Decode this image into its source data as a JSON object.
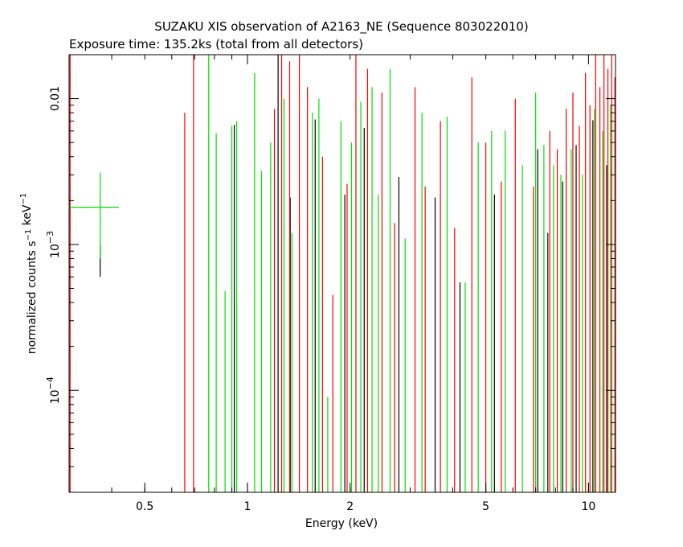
{
  "chart_data": {
    "type": "scatter",
    "title": "SUZAKU XIS observation of A2163_NE (Sequence 803022010)",
    "subtitle": "Exposure time: 135.2ks (total from all detectors)",
    "xlabel": "Energy (keV)",
    "ylabel": "normalized counts s⁻¹ keV⁻¹",
    "xscale": "log",
    "yscale": "log",
    "xlim": [
      0.3,
      12.0
    ],
    "ylim": [
      2e-05,
      0.02
    ],
    "x_ticks": [
      {
        "value": 0.5,
        "label": "0.5"
      },
      {
        "value": 1,
        "label": "1"
      },
      {
        "value": 2,
        "label": "2"
      },
      {
        "value": 5,
        "label": "5"
      },
      {
        "value": 10,
        "label": "10"
      }
    ],
    "y_ticks": [
      {
        "value": 0.01,
        "label": "0.01",
        "type": "plain"
      },
      {
        "value": 0.001,
        "label": "10",
        "exp": "−3",
        "type": "pow"
      },
      {
        "value": 0.0001,
        "label": "10",
        "exp": "−4",
        "type": "pow"
      }
    ],
    "grid": false,
    "series": [
      {
        "color": "#000000",
        "points": [
          {
            "x": 0.37,
            "y": 0.001,
            "ylo": 0.0006,
            "yhi": 0.001
          },
          {
            "x": 0.915,
            "y": 0.0066,
            "ylo": 2e-05,
            "yhi": 0.0066
          },
          {
            "x": 1.23,
            "y": 0.02,
            "ylo": 2e-05,
            "yhi": 0.02
          },
          {
            "x": 1.335,
            "y": 0.0021,
            "ylo": 2e-05,
            "yhi": 0.0021
          },
          {
            "x": 1.58,
            "y": 0.0072,
            "ylo": 2e-05,
            "yhi": 0.0072
          },
          {
            "x": 1.93,
            "y": 0.0022,
            "ylo": 2e-05,
            "yhi": 0.0022
          },
          {
            "x": 2.2,
            "y": 0.0063,
            "ylo": 2e-05,
            "yhi": 0.0063
          },
          {
            "x": 2.78,
            "y": 0.0029,
            "ylo": 2e-05,
            "yhi": 0.0029
          },
          {
            "x": 3.55,
            "y": 0.0021,
            "ylo": 2e-05,
            "yhi": 0.0021
          },
          {
            "x": 4.2,
            "y": 0.00055,
            "ylo": 2e-05,
            "yhi": 0.00055
          },
          {
            "x": 5.3,
            "y": 0.0022,
            "ylo": 2e-05,
            "yhi": 0.0022
          },
          {
            "x": 7.1,
            "y": 0.0045,
            "ylo": 2e-05,
            "yhi": 0.0045
          },
          {
            "x": 7.6,
            "y": 0.0012,
            "ylo": 2e-05,
            "yhi": 0.0012
          },
          {
            "x": 8.4,
            "y": 0.0027,
            "ylo": 2e-05,
            "yhi": 0.0027
          },
          {
            "x": 9.2,
            "y": 0.0048,
            "ylo": 2e-05,
            "yhi": 0.0048
          },
          {
            "x": 10.3,
            "y": 0.0071,
            "ylo": 2e-05,
            "yhi": 0.0071
          },
          {
            "x": 11.3,
            "y": 0.0035,
            "ylo": 2e-05,
            "yhi": 0.0035
          }
        ]
      },
      {
        "color": "#ff0000",
        "points": [
          {
            "x": 0.302,
            "y": 0.02,
            "ylo": 2e-05,
            "yhi": 0.02
          },
          {
            "x": 0.655,
            "y": 0.008,
            "ylo": 2e-05,
            "yhi": 0.008
          },
          {
            "x": 0.695,
            "y": 0.02,
            "ylo": 2e-05,
            "yhi": 0.02
          },
          {
            "x": 1.2,
            "y": 0.0085,
            "ylo": 2e-05,
            "yhi": 0.0085
          },
          {
            "x": 1.26,
            "y": 0.02,
            "ylo": 2e-05,
            "yhi": 0.02
          },
          {
            "x": 1.33,
            "y": 0.018,
            "ylo": 2e-05,
            "yhi": 0.018
          },
          {
            "x": 1.42,
            "y": 0.02,
            "ylo": 2e-05,
            "yhi": 0.02
          },
          {
            "x": 1.5,
            "y": 0.012,
            "ylo": 2e-05,
            "yhi": 0.012
          },
          {
            "x": 1.66,
            "y": 0.004,
            "ylo": 2e-05,
            "yhi": 0.004
          },
          {
            "x": 1.78,
            "y": 0.00045,
            "ylo": 2e-05,
            "yhi": 0.00045
          },
          {
            "x": 1.96,
            "y": 0.0026,
            "ylo": 2e-05,
            "yhi": 0.0026
          },
          {
            "x": 2.08,
            "y": 0.02,
            "ylo": 2e-05,
            "yhi": 0.02
          },
          {
            "x": 2.25,
            "y": 0.016,
            "ylo": 2e-05,
            "yhi": 0.016
          },
          {
            "x": 2.48,
            "y": 0.011,
            "ylo": 2e-05,
            "yhi": 0.011
          },
          {
            "x": 2.7,
            "y": 0.0014,
            "ylo": 2e-05,
            "yhi": 0.0014
          },
          {
            "x": 3.1,
            "y": 0.012,
            "ylo": 2e-05,
            "yhi": 0.012
          },
          {
            "x": 3.32,
            "y": 0.0025,
            "ylo": 2e-05,
            "yhi": 0.0025
          },
          {
            "x": 3.68,
            "y": 0.007,
            "ylo": 2e-05,
            "yhi": 0.007
          },
          {
            "x": 4.05,
            "y": 0.0013,
            "ylo": 2e-05,
            "yhi": 0.0013
          },
          {
            "x": 4.55,
            "y": 0.014,
            "ylo": 2e-05,
            "yhi": 0.014
          },
          {
            "x": 5.0,
            "y": 0.005,
            "ylo": 2e-05,
            "yhi": 0.005
          },
          {
            "x": 5.55,
            "y": 0.0027,
            "ylo": 2e-05,
            "yhi": 0.0027
          },
          {
            "x": 6.1,
            "y": 0.01,
            "ylo": 2e-05,
            "yhi": 0.01
          },
          {
            "x": 6.9,
            "y": 0.0025,
            "ylo": 2e-05,
            "yhi": 0.0025
          },
          {
            "x": 7.7,
            "y": 0.006,
            "ylo": 2e-05,
            "yhi": 0.006
          },
          {
            "x": 8.1,
            "y": 0.0045,
            "ylo": 2e-05,
            "yhi": 0.0045
          },
          {
            "x": 8.6,
            "y": 0.0085,
            "ylo": 2e-05,
            "yhi": 0.0085
          },
          {
            "x": 9.0,
            "y": 0.011,
            "ylo": 2e-05,
            "yhi": 0.011
          },
          {
            "x": 9.4,
            "y": 0.0065,
            "ylo": 2e-05,
            "yhi": 0.0065
          },
          {
            "x": 9.8,
            "y": 0.015,
            "ylo": 2e-05,
            "yhi": 0.015
          },
          {
            "x": 10.1,
            "y": 0.009,
            "ylo": 2e-05,
            "yhi": 0.009
          },
          {
            "x": 10.5,
            "y": 0.02,
            "ylo": 2e-05,
            "yhi": 0.02
          },
          {
            "x": 10.8,
            "y": 0.012,
            "ylo": 2e-05,
            "yhi": 0.012
          },
          {
            "x": 11.1,
            "y": 0.02,
            "ylo": 2e-05,
            "yhi": 0.02
          },
          {
            "x": 11.4,
            "y": 0.016,
            "ylo": 2e-05,
            "yhi": 0.016
          },
          {
            "x": 11.7,
            "y": 0.02,
            "ylo": 2e-05,
            "yhi": 0.02
          },
          {
            "x": 11.95,
            "y": 0.014,
            "ylo": 2e-05,
            "yhi": 0.014
          }
        ]
      },
      {
        "color": "#00e000",
        "points": [
          {
            "x": 0.37,
            "y": 0.0018,
            "ylo": 0.0008,
            "yhi": 0.0031,
            "xlo": 0.3,
            "xhi": 0.42
          },
          {
            "x": 0.77,
            "y": 0.009,
            "ylo": 2e-05,
            "yhi": 0.02
          },
          {
            "x": 0.81,
            "y": 0.0058,
            "ylo": 2e-05,
            "yhi": 0.0058
          },
          {
            "x": 0.86,
            "y": 0.00048,
            "ylo": 2e-05,
            "yhi": 0.00048
          },
          {
            "x": 0.9,
            "y": 0.0065,
            "ylo": 2e-05,
            "yhi": 0.0065
          },
          {
            "x": 0.93,
            "y": 0.007,
            "ylo": 2e-05,
            "yhi": 0.007
          },
          {
            "x": 1.05,
            "y": 0.015,
            "ylo": 2e-05,
            "yhi": 0.015
          },
          {
            "x": 1.1,
            "y": 0.0032,
            "ylo": 2e-05,
            "yhi": 0.0032
          },
          {
            "x": 1.17,
            "y": 0.005,
            "ylo": 2e-05,
            "yhi": 0.005
          },
          {
            "x": 1.28,
            "y": 0.01,
            "ylo": 2e-05,
            "yhi": 0.01
          },
          {
            "x": 1.35,
            "y": 0.0012,
            "ylo": 2e-05,
            "yhi": 0.0012
          },
          {
            "x": 1.55,
            "y": 0.008,
            "ylo": 2e-05,
            "yhi": 0.008
          },
          {
            "x": 1.62,
            "y": 0.01,
            "ylo": 2e-05,
            "yhi": 0.01
          },
          {
            "x": 1.72,
            "y": 9e-05,
            "ylo": 2e-05,
            "yhi": 9e-05
          },
          {
            "x": 1.88,
            "y": 0.007,
            "ylo": 2e-05,
            "yhi": 0.007
          },
          {
            "x": 2.02,
            "y": 0.005,
            "ylo": 2e-05,
            "yhi": 0.005
          },
          {
            "x": 2.15,
            "y": 0.0095,
            "ylo": 2e-05,
            "yhi": 0.0095
          },
          {
            "x": 2.32,
            "y": 0.012,
            "ylo": 2e-05,
            "yhi": 0.012
          },
          {
            "x": 2.42,
            "y": 0.0022,
            "ylo": 2e-05,
            "yhi": 0.0022
          },
          {
            "x": 2.62,
            "y": 0.016,
            "ylo": 2e-05,
            "yhi": 0.016
          },
          {
            "x": 2.9,
            "y": 0.0011,
            "ylo": 2e-05,
            "yhi": 0.0011
          },
          {
            "x": 3.25,
            "y": 0.008,
            "ylo": 2e-05,
            "yhi": 0.008
          },
          {
            "x": 3.85,
            "y": 0.0075,
            "ylo": 2e-05,
            "yhi": 0.0075
          },
          {
            "x": 4.35,
            "y": 0.00055,
            "ylo": 2e-05,
            "yhi": 0.00055
          },
          {
            "x": 4.75,
            "y": 0.005,
            "ylo": 2e-05,
            "yhi": 0.005
          },
          {
            "x": 5.2,
            "y": 0.006,
            "ylo": 2e-05,
            "yhi": 0.006
          },
          {
            "x": 5.7,
            "y": 0.006,
            "ylo": 2e-05,
            "yhi": 0.006
          },
          {
            "x": 6.4,
            "y": 0.0035,
            "ylo": 2e-05,
            "yhi": 0.0035
          },
          {
            "x": 7.0,
            "y": 0.011,
            "ylo": 2e-05,
            "yhi": 0.011
          },
          {
            "x": 7.4,
            "y": 0.0048,
            "ylo": 2e-05,
            "yhi": 0.0048
          },
          {
            "x": 7.9,
            "y": 0.0035,
            "ylo": 2e-05,
            "yhi": 0.0035
          },
          {
            "x": 8.3,
            "y": 0.003,
            "ylo": 2e-05,
            "yhi": 0.003
          },
          {
            "x": 8.9,
            "y": 0.0045,
            "ylo": 2e-05,
            "yhi": 0.0045
          },
          {
            "x": 9.6,
            "y": 0.003,
            "ylo": 2e-05,
            "yhi": 0.003
          },
          {
            "x": 10.4,
            "y": 0.0085,
            "ylo": 2e-05,
            "yhi": 0.0085
          },
          {
            "x": 11.0,
            "y": 0.006,
            "ylo": 2e-05,
            "yhi": 0.006
          },
          {
            "x": 11.6,
            "y": 0.009,
            "ylo": 2e-05,
            "yhi": 0.009
          }
        ]
      }
    ]
  }
}
